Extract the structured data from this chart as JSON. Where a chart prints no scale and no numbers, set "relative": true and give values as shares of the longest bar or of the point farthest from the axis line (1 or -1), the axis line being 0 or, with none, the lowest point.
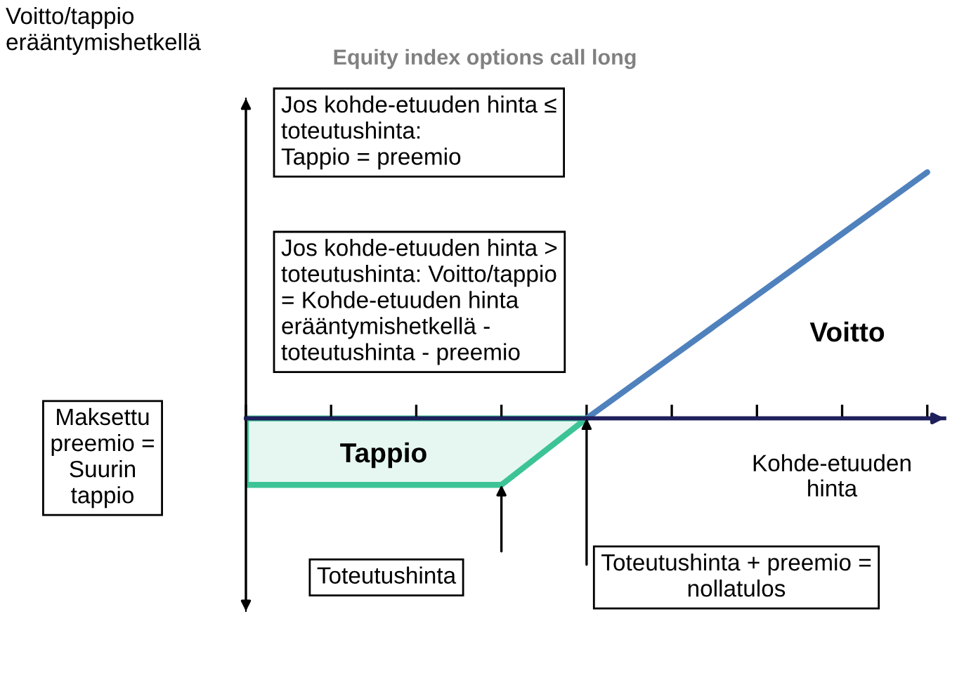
{
  "chart_data": {
    "type": "area",
    "relative": true,
    "title": "Equity index options call long",
    "xlabel": "Kohde-etuuden\nhinta",
    "categories": [
      null,
      null,
      null,
      null,
      null,
      null,
      null,
      null,
      null
    ],
    "series": [
      {
        "color": "#3cc497",
        "values": [
          -0.27,
          -0.27,
          -0.27,
          -0.27,
          0,
          null,
          null,
          null,
          null
        ]
      },
      {
        "type": "line",
        "color": "#4f81bd",
        "values": [
          null,
          null,
          null,
          null,
          0,
          0.25,
          0.5,
          0.75,
          1
        ]
      }
    ],
    "annotations": [
      "Jos kohde-etuuden hinta ≤\ntoteutushinta:\nTappio = preemio",
      "Jos kohde-etuuden hinta >\ntoteutushinta: Voitto/tappio\n= Kohde-etuuden hinta\nerääntymishetkellä -\ntoteutushinta - preemio",
      "Tappio",
      "Voitto",
      "Maksettu\npreemio =\nSuurin\ntappio",
      "Toteutushinta",
      "Toteutushinta + preemio =\nnollatulos",
      "Voitto/tappio\nerääntymishetkellä"
    ]
  }
}
